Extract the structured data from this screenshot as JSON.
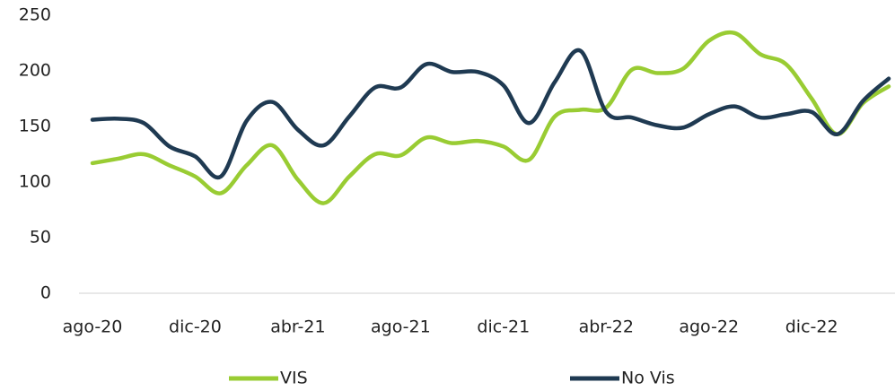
{
  "chart_data": {
    "type": "line",
    "categories": [
      "ago-20",
      null,
      null,
      null,
      "dic-20",
      null,
      null,
      null,
      "abr-21",
      null,
      null,
      null,
      "ago-21",
      null,
      null,
      null,
      "dic-21",
      null,
      null,
      null,
      "abr-22",
      null,
      null,
      null,
      "ago-22",
      null,
      null,
      null,
      "dic-22",
      null,
      null,
      null
    ],
    "series": [
      {
        "name": "VIS",
        "color": "#99cc33",
        "values": [
          117,
          121,
          125,
          115,
          105,
          90,
          115,
          133,
          102,
          81,
          105,
          125,
          124,
          140,
          135,
          137,
          132,
          120,
          159,
          165,
          167,
          201,
          198,
          202,
          227,
          234,
          215,
          206,
          175,
          143,
          171,
          186
        ]
      },
      {
        "name": "No Vis",
        "color": "#1f3a52",
        "values": [
          156,
          157,
          153,
          132,
          123,
          105,
          155,
          172,
          147,
          133,
          159,
          185,
          185,
          206,
          199,
          199,
          187,
          153,
          190,
          218,
          163,
          158,
          151,
          149,
          161,
          168,
          158,
          161,
          163,
          143,
          173,
          193
        ]
      }
    ],
    "ylim": [
      0,
      250
    ],
    "yticks": [
      0,
      50,
      100,
      150,
      200,
      250
    ],
    "grid": false,
    "legend": "bottom"
  }
}
